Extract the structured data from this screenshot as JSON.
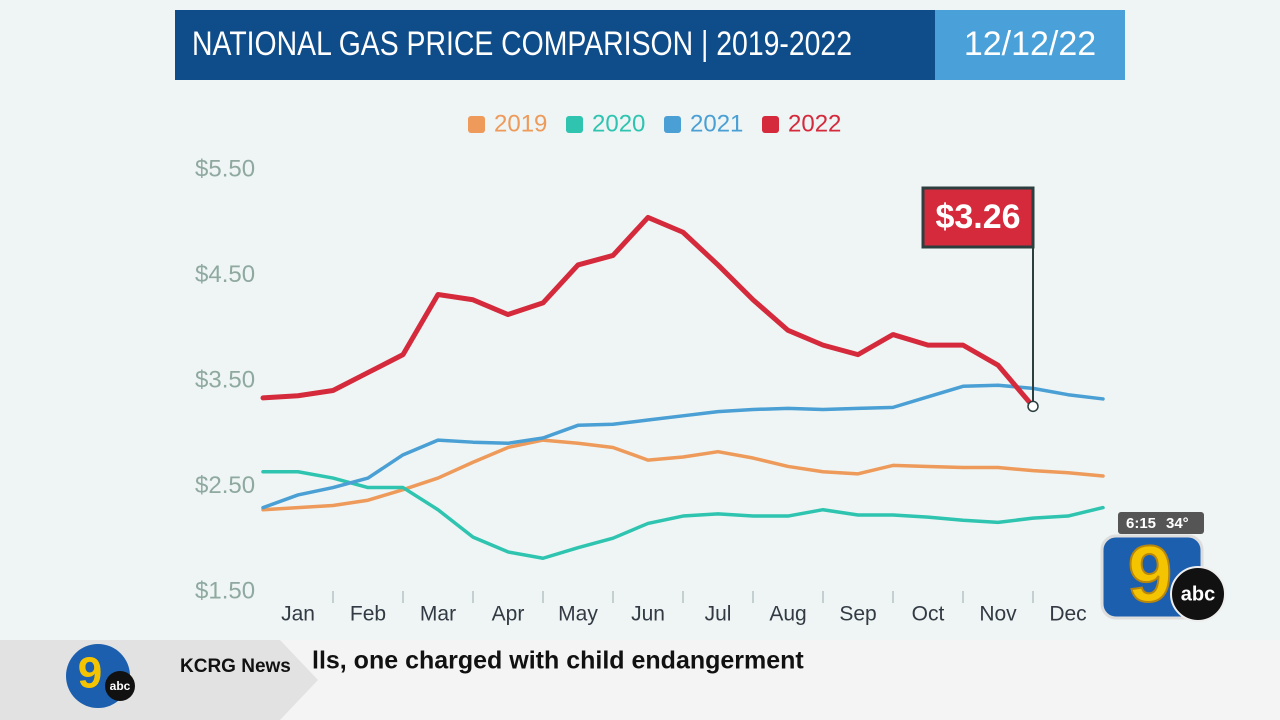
{
  "chart_data": {
    "type": "line",
    "title": "NATIONAL GAS PRICE COMPARISON | 2019-2022",
    "date": "12/12/22",
    "categories": [
      null,
      "Jan",
      null,
      "Feb",
      null,
      "Mar",
      null,
      "Apr",
      null,
      "May",
      null,
      "Jun",
      null,
      "Jul",
      null,
      "Aug",
      null,
      "Sep",
      null,
      "Oct",
      null,
      "Nov",
      null,
      "Dec",
      null
    ],
    "ylim": [
      1.5,
      5.5
    ],
    "yticks": [
      {
        "value": 1.5,
        "label": "$1.50"
      },
      {
        "value": 2.5,
        "label": "$2.50"
      },
      {
        "value": 3.5,
        "label": "$3.50"
      },
      {
        "value": 4.5,
        "label": "$4.50"
      },
      {
        "value": 5.5,
        "label": "$5.50"
      }
    ],
    "series": [
      {
        "name": "2019",
        "color": "#ee9a5a",
        "values": [
          2.28,
          2.3,
          2.32,
          2.37,
          2.47,
          2.58,
          2.73,
          2.87,
          2.94,
          2.91,
          2.87,
          2.75,
          2.78,
          2.83,
          2.77,
          2.69,
          2.64,
          2.62,
          2.7,
          2.69,
          2.68,
          2.68,
          2.65,
          2.63,
          2.6
        ]
      },
      {
        "name": "2020",
        "color": "#2ec4b0",
        "values": [
          2.64,
          2.64,
          2.58,
          2.49,
          2.49,
          2.28,
          2.02,
          1.88,
          1.82,
          1.92,
          2.01,
          2.15,
          2.22,
          2.24,
          2.22,
          2.22,
          2.28,
          2.23,
          2.23,
          2.21,
          2.18,
          2.16,
          2.2,
          2.22,
          2.3
        ]
      },
      {
        "name": "2021",
        "color": "#4a9fd4",
        "values": [
          2.3,
          2.42,
          2.49,
          2.58,
          2.8,
          2.94,
          2.92,
          2.91,
          2.96,
          3.08,
          3.09,
          3.13,
          3.17,
          3.21,
          3.23,
          3.24,
          3.23,
          3.24,
          3.25,
          3.35,
          3.45,
          3.46,
          3.43,
          3.37,
          3.33
        ]
      },
      {
        "name": "2022",
        "color": "#d42a3c",
        "values": [
          3.34,
          3.36,
          3.41,
          3.58,
          3.75,
          4.32,
          4.27,
          4.13,
          4.24,
          4.6,
          4.69,
          5.05,
          4.91,
          4.6,
          4.27,
          3.98,
          3.84,
          3.75,
          3.94,
          3.84,
          3.84,
          3.65,
          3.26,
          null,
          null
        ],
        "value_labels": [
          null,
          null,
          null,
          null,
          null,
          null,
          null,
          null,
          null,
          null,
          null,
          null,
          null,
          null,
          null,
          null,
          null,
          null,
          null,
          null,
          null,
          null,
          "$3.26",
          null,
          null
        ]
      }
    ]
  },
  "ticker": {
    "source": "KCRG News",
    "headline": "lls, one charged with child endangerment"
  },
  "bug": {
    "time": "6:15",
    "temp": "34°",
    "logo": "abc"
  }
}
